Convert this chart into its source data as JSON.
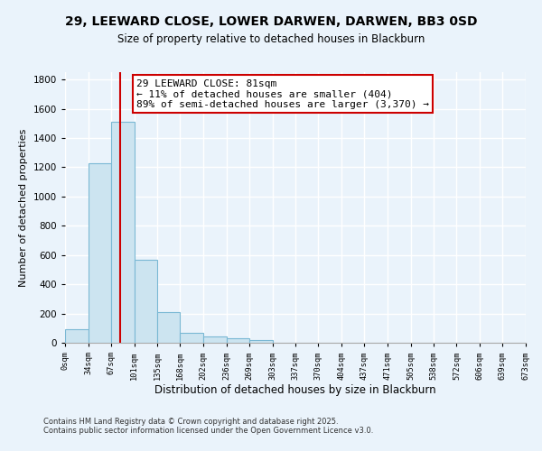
{
  "title": "29, LEEWARD CLOSE, LOWER DARWEN, DARWEN, BB3 0SD",
  "subtitle": "Size of property relative to detached houses in Blackburn",
  "xlabel": "Distribution of detached houses by size in Blackburn",
  "ylabel": "Number of detached properties",
  "bar_left_edges": [
    0,
    34,
    67,
    101,
    135,
    168,
    202,
    236,
    269,
    303,
    337,
    370,
    404,
    437,
    471,
    505,
    538,
    572,
    606,
    639
  ],
  "bar_widths": [
    34,
    33,
    34,
    34,
    33,
    34,
    34,
    33,
    34,
    34,
    33,
    34,
    33,
    34,
    34,
    33,
    34,
    34,
    33,
    34
  ],
  "bar_heights": [
    90,
    1230,
    1510,
    570,
    210,
    65,
    45,
    30,
    20,
    0,
    0,
    0,
    0,
    0,
    0,
    0,
    0,
    0,
    0,
    0
  ],
  "bar_color": "#cce4f0",
  "bar_edgecolor": "#7ab8d4",
  "tick_labels": [
    "0sqm",
    "34sqm",
    "67sqm",
    "101sqm",
    "135sqm",
    "168sqm",
    "202sqm",
    "236sqm",
    "269sqm",
    "303sqm",
    "337sqm",
    "370sqm",
    "404sqm",
    "437sqm",
    "471sqm",
    "505sqm",
    "538sqm",
    "572sqm",
    "606sqm",
    "639sqm",
    "673sqm"
  ],
  "tick_positions": [
    0,
    34,
    67,
    101,
    135,
    168,
    202,
    236,
    269,
    303,
    337,
    370,
    404,
    437,
    471,
    505,
    538,
    572,
    606,
    639,
    673
  ],
  "ylim": [
    0,
    1850
  ],
  "xlim": [
    0,
    673
  ],
  "vline_x": 81,
  "vline_color": "#cc0000",
  "annotation_title": "29 LEEWARD CLOSE: 81sqm",
  "annotation_line1": "← 11% of detached houses are smaller (404)",
  "annotation_line2": "89% of semi-detached houses are larger (3,370) →",
  "footnote1": "Contains HM Land Registry data © Crown copyright and database right 2025.",
  "footnote2": "Contains public sector information licensed under the Open Government Licence v3.0.",
  "yticks": [
    0,
    200,
    400,
    600,
    800,
    1000,
    1200,
    1400,
    1600,
    1800
  ],
  "bg_color": "#eaf3fb",
  "grid_color": "#ffffff"
}
